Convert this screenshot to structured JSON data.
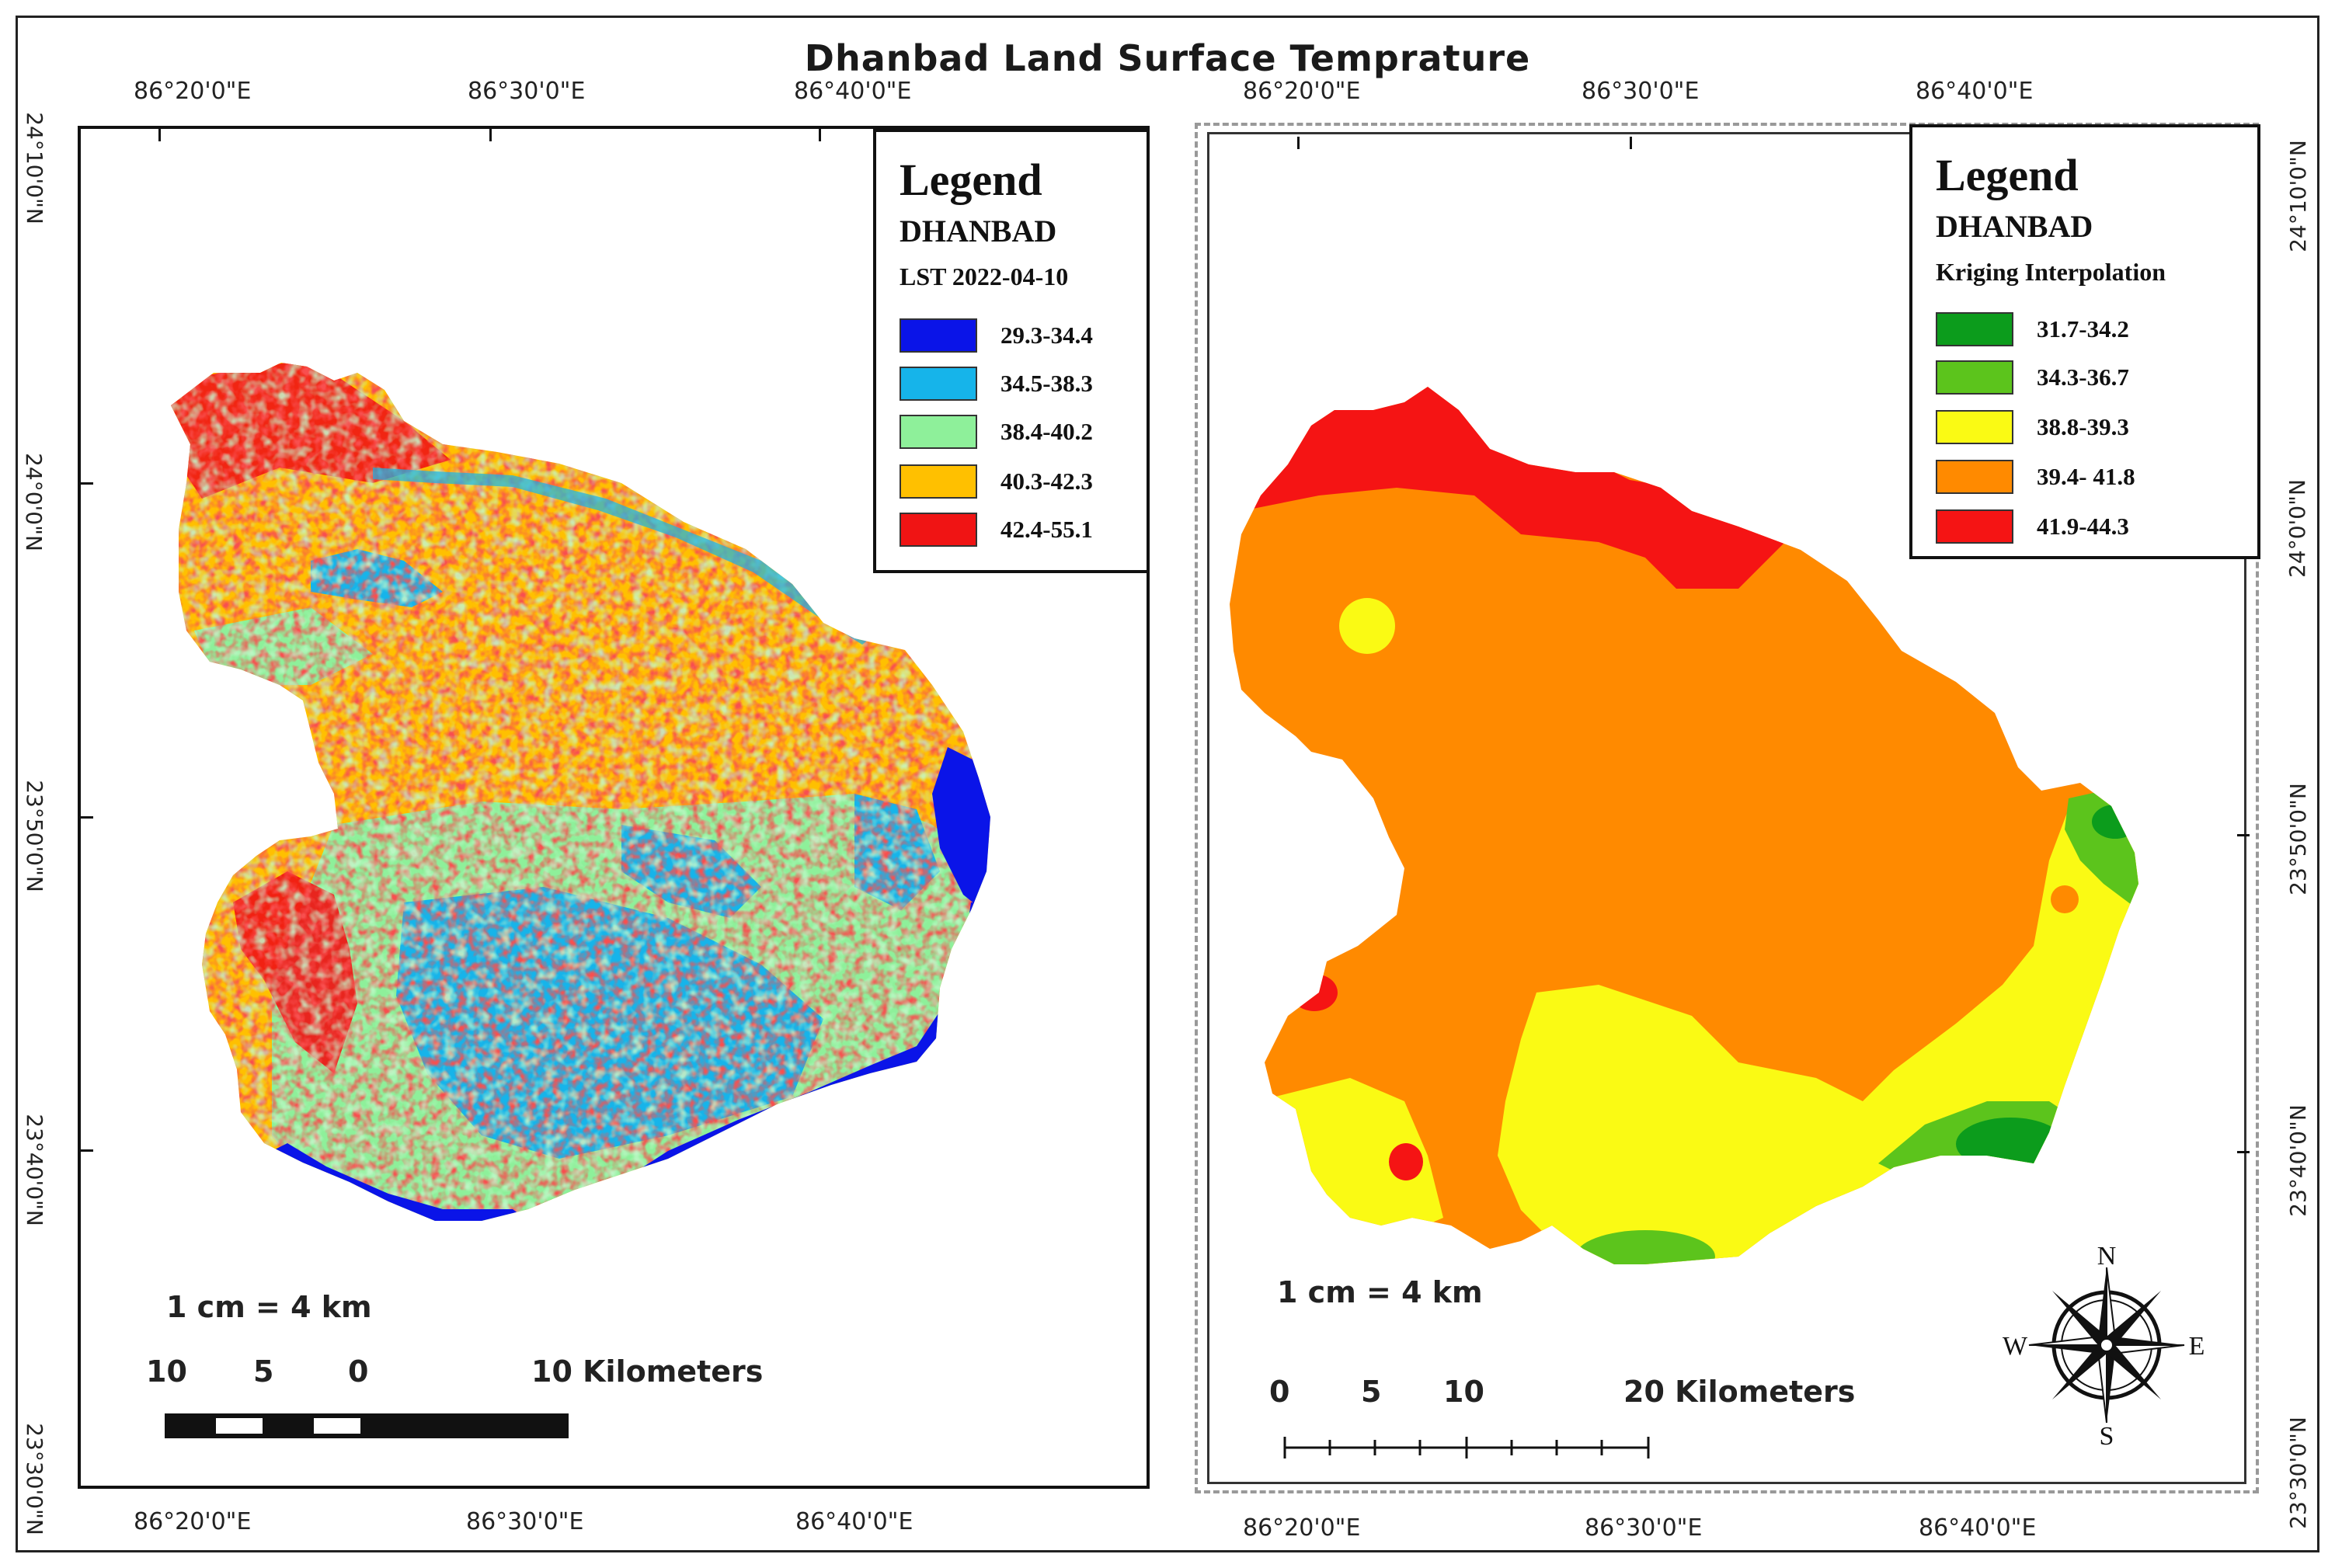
{
  "title": "Dhanbad Land Surface Temprature",
  "lon_labels": [
    "86°20'0\"E",
    "86°30'0\"E",
    "86°40'0\"E"
  ],
  "lat_labels": [
    "24°10'0\"N",
    "24°0'0\"N",
    "23°50'0\"N",
    "23°40'0\"N",
    "23°30'0\"N"
  ],
  "left_map": {
    "legend": {
      "title": "Legend",
      "subtitle": "DHANBAD",
      "layer": "LST 2022-04-10",
      "items": [
        {
          "label": "29.3-34.4",
          "color": "#0a14e8"
        },
        {
          "label": "34.5-38.3",
          "color": "#16b4ea"
        },
        {
          "label": "38.4-40.2",
          "color": "#8ef09a"
        },
        {
          "label": "40.3-42.3",
          "color": "#ffc000"
        },
        {
          "label": "42.4-55.1",
          "color": "#f01414"
        }
      ]
    },
    "scale": {
      "ratio": "1 cm = 4 km",
      "labels": [
        "10",
        "5",
        "0",
        "10 Kilometers"
      ]
    }
  },
  "right_map": {
    "legend": {
      "title": "Legend",
      "subtitle": "DHANBAD",
      "layer": "Kriging Interpolation",
      "items": [
        {
          "label": "31.7-34.2",
          "color": "#0c9c1c"
        },
        {
          "label": "34.3-36.7",
          "color": "#5cc41c"
        },
        {
          "label": "38.8-39.3",
          "color": "#fafa14"
        },
        {
          "label": "39.4- 41.8",
          "color": "#ff8a00"
        },
        {
          "label": "41.9-44.3",
          "color": "#f51414"
        }
      ]
    },
    "scale": {
      "ratio": "1 cm = 4 km",
      "labels": [
        "0",
        "5",
        "10",
        "20 Kilometers"
      ]
    },
    "north_arrow": {
      "n": "N",
      "s": "S",
      "e": "E",
      "w": "W"
    }
  }
}
